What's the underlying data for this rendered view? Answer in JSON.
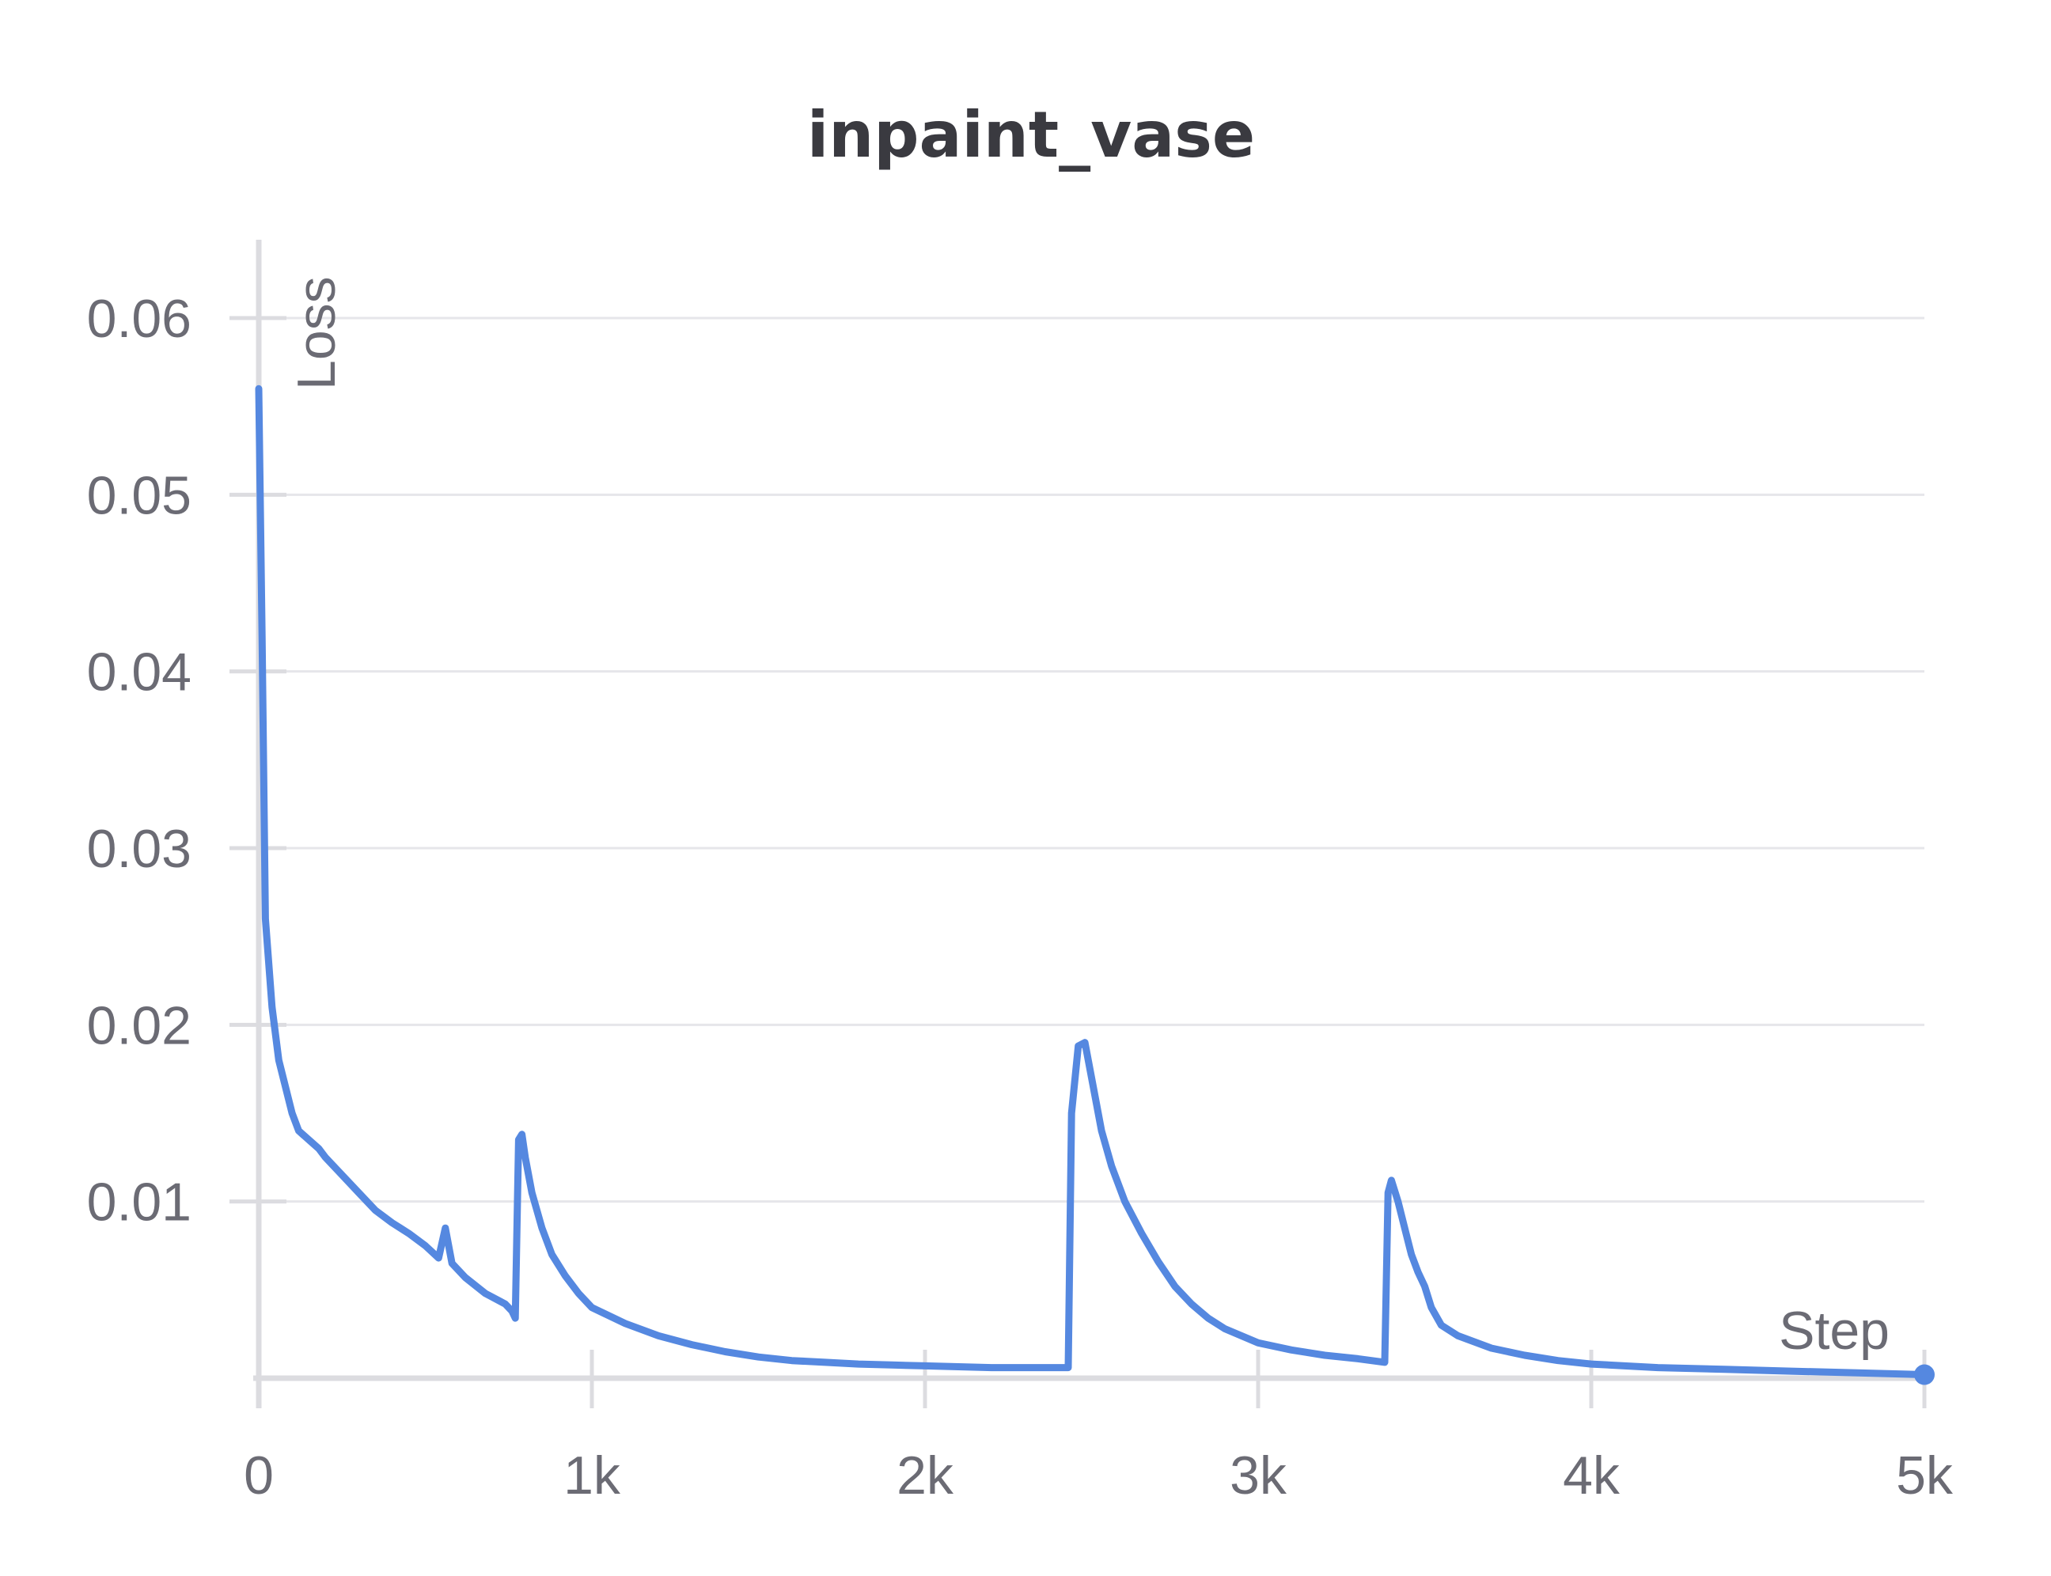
{
  "chart_data": {
    "type": "line",
    "title": "inpaint_vase",
    "xlabel": "Step",
    "ylabel": "Loss",
    "xlim": [
      0,
      5000
    ],
    "ylim": [
      0,
      0.0645
    ],
    "x_ticks": [
      0,
      1000,
      2000,
      3000,
      4000,
      5000
    ],
    "x_tick_labels": [
      "0",
      "1k",
      "2k",
      "3k",
      "4k",
      "5k"
    ],
    "y_ticks": [
      0.01,
      0.02,
      0.03,
      0.04,
      0.05,
      0.06
    ],
    "y_tick_labels": [
      "0.01",
      "0.02",
      "0.03",
      "0.04",
      "0.05",
      "0.06"
    ],
    "grid": true,
    "series": [
      {
        "color": "#5588e0",
        "x": [
          0,
          10,
          20,
          40,
          60,
          80,
          100,
          120,
          150,
          180,
          200,
          250,
          300,
          350,
          400,
          450,
          500,
          540,
          560,
          580,
          620,
          680,
          740,
          760,
          770,
          780,
          790,
          800,
          820,
          850,
          880,
          920,
          960,
          1000,
          1100,
          1200,
          1300,
          1400,
          1500,
          1600,
          1700,
          1800,
          1900,
          2000,
          2100,
          2200,
          2300,
          2430,
          2440,
          2460,
          2480,
          2500,
          2530,
          2560,
          2600,
          2650,
          2700,
          2750,
          2800,
          2850,
          2900,
          3000,
          3100,
          3200,
          3300,
          3380,
          3390,
          3400,
          3420,
          3440,
          3460,
          3480,
          3500,
          3520,
          3550,
          3600,
          3700,
          3800,
          3900,
          4000,
          4200,
          4400,
          4600,
          4800,
          5000
        ],
        "y": [
          0.056,
          0.042,
          0.026,
          0.021,
          0.018,
          0.0165,
          0.015,
          0.014,
          0.0135,
          0.013,
          0.0125,
          0.0115,
          0.0105,
          0.0095,
          0.0088,
          0.0082,
          0.0075,
          0.0068,
          0.0085,
          0.0065,
          0.0057,
          0.0048,
          0.0042,
          0.0038,
          0.0034,
          0.0135,
          0.0138,
          0.0125,
          0.0105,
          0.0085,
          0.007,
          0.0058,
          0.0048,
          0.004,
          0.0031,
          0.0024,
          0.0019,
          0.0015,
          0.0012,
          0.001,
          0.0009,
          0.0008,
          0.00075,
          0.0007,
          0.00065,
          0.0006,
          0.0006,
          0.0006,
          0.015,
          0.0188,
          0.019,
          0.017,
          0.014,
          0.012,
          0.01,
          0.0082,
          0.0066,
          0.0052,
          0.0042,
          0.0034,
          0.0028,
          0.002,
          0.0016,
          0.0013,
          0.0011,
          0.0009,
          0.0105,
          0.0112,
          0.01,
          0.0085,
          0.007,
          0.006,
          0.0052,
          0.004,
          0.003,
          0.0024,
          0.0017,
          0.0013,
          0.001,
          0.0008,
          0.0006,
          0.0005,
          0.0004,
          0.0003,
          0.0002
        ]
      }
    ]
  }
}
